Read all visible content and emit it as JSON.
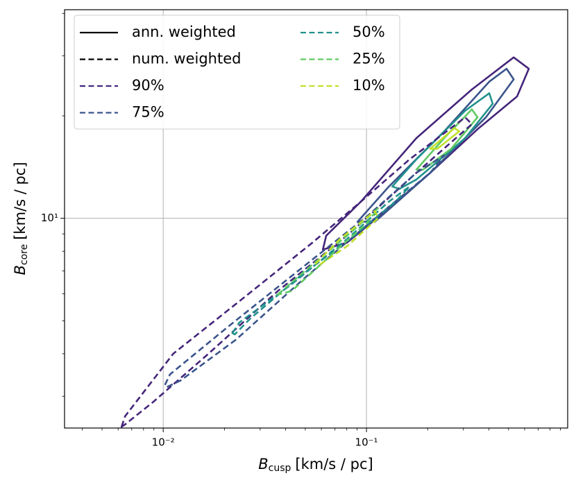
{
  "chart_data": {
    "type": "contour",
    "x_label": {
      "symbol": "B",
      "subscript": "cusp",
      "unit": "[km/s / pc]"
    },
    "y_label": {
      "symbol": "B",
      "subscript": "core",
      "unit": "[km/s / pc]"
    },
    "xscale": "log",
    "yscale": "log",
    "xlim": [
      0.00327,
      0.977
    ],
    "ylim": [
      2.42,
      41
    ],
    "xticks": [
      {
        "value": 0.01,
        "label": "10⁻²"
      },
      {
        "value": 0.1,
        "label": "10⁻¹"
      }
    ],
    "yticks": [
      {
        "value": 10,
        "label": "10¹"
      }
    ],
    "xminor_ticks": [
      0.004,
      0.005,
      0.006,
      0.007,
      0.008,
      0.009,
      0.02,
      0.03,
      0.04,
      0.05,
      0.06,
      0.07,
      0.08,
      0.09,
      0.2,
      0.3,
      0.4,
      0.5,
      0.6,
      0.7,
      0.8,
      0.9
    ],
    "yminor_ticks": [
      3,
      4,
      5,
      6,
      7,
      8,
      9,
      20,
      30,
      40
    ],
    "grid": true,
    "legend": {
      "corner": "upper left",
      "columns": 2
    },
    "levels": [
      {
        "name": "90%",
        "color": "#45257a"
      },
      {
        "name": "75%",
        "color": "#3a548c"
      },
      {
        "name": "50%",
        "color": "#21918c"
      },
      {
        "name": "25%",
        "color": "#5ec962"
      },
      {
        "name": "10%",
        "color": "#bfe02a"
      }
    ],
    "series": [
      {
        "name": "ann. weighted",
        "color": "#000000",
        "dashed": false,
        "contours": [
          {
            "x": [
              0.061,
              0.0634,
              0.094,
              0.176,
              0.33,
              0.53,
              0.629,
              0.551,
              0.357,
              0.206,
              0.129,
              0.0802
            ],
            "y": [
              8.09,
              8.89,
              11.2,
              17.2,
              23.9,
              29.7,
              27.5,
              22.8,
              18.4,
              13.6,
              10.7,
              8.48
            ]
          },
          {
            "x": [
              0.0904,
              0.129,
              0.241,
              0.402,
              0.489,
              0.53,
              0.387,
              0.206,
              0.11
            ],
            "y": [
              9.77,
              12.4,
              18.0,
              25.2,
              27.5,
              25.6,
              19.8,
              13.6,
              9.77
            ]
          },
          {
            "x": [
              0.134,
              0.176,
              0.306,
              0.402,
              0.418,
              0.306,
              0.176,
              0.145
            ],
            "y": [
              12.4,
              14.9,
              20.7,
              23.3,
              21.7,
              17.2,
              13.0,
              12.2
            ]
          },
          {
            "x": [
              0.176,
              0.241,
              0.33,
              0.352,
              0.261,
              0.19
            ],
            "y": [
              13.9,
              17.2,
              20.9,
              19.8,
              16.0,
              13.9
            ]
          },
          {
            "x": [
              0.206,
              0.271,
              0.286,
              0.223
            ],
            "y": [
              16.0,
              18.4,
              18.0,
              16.0
            ]
          }
        ]
      },
      {
        "name": "num. weighted",
        "color": "#000000",
        "dashed": true,
        "contours": [
          {
            "x": [
              0.00624,
              0.00649,
              0.0112,
              0.0247,
              0.0542,
              0.094,
              0.163,
              0.306,
              0.33,
              0.176,
              0.0802,
              0.0366,
              0.0167,
              0.00889,
              0.00649
            ],
            "y": [
              2.44,
              2.62,
              4.0,
              5.82,
              8.48,
              11.2,
              14.9,
              19.8,
              18.9,
              13.6,
              8.89,
              6.11,
              4.0,
              2.88,
              2.48
            ]
          },
          {
            "x": [
              0.0102,
              0.0108,
              0.0211,
              0.0464,
              0.102,
              0.176,
              0.241,
              0.206,
              0.11,
              0.0501,
              0.0228,
              0.0122,
              0.0104
            ],
            "y": [
              3.24,
              3.48,
              4.83,
              7.03,
              10.2,
              13.6,
              15.3,
              13.6,
              10.0,
              6.71,
              4.4,
              3.34,
              3.19
            ]
          },
          {
            "x": [
              0.0219,
              0.0237,
              0.0428,
              0.0802,
              0.129,
              0.163,
              0.139,
              0.0869,
              0.0464,
              0.0267,
              0.0225
            ],
            "y": [
              4.6,
              4.94,
              6.4,
              8.69,
              11.2,
              12.4,
              11.2,
              8.89,
              6.71,
              5.06,
              4.56
            ]
          },
          {
            "x": [
              0.0366,
              0.0501,
              0.0802,
              0.114,
              0.102,
              0.0686,
              0.0428
            ],
            "y": [
              5.97,
              7.03,
              8.89,
              10.7,
              9.77,
              7.9,
              6.11
            ]
          },
          {
            "x": [
              0.0563,
              0.0741,
              0.11,
              0.114,
              0.0802,
              0.0586
            ],
            "y": [
              7.36,
              8.69,
              10.5,
              10.0,
              8.28,
              7.29
            ]
          }
        ]
      }
    ]
  }
}
